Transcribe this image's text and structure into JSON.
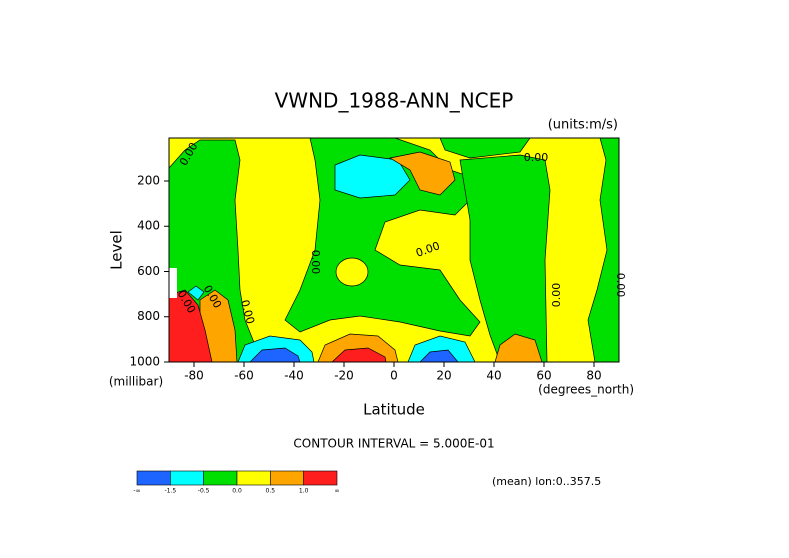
{
  "chart_data": {
    "type": "contour",
    "title": "VWND_1988-ANN_NCEP",
    "units": "(units:m/s)",
    "y_label": "Level",
    "y_units": "(millibar)",
    "x_label": "Latitude",
    "x_units": "(degrees_north)",
    "xlim": [
      -90,
      90
    ],
    "xticks": [
      -80,
      -60,
      -40,
      -20,
      0,
      20,
      40,
      60,
      80
    ],
    "ylim": [
      1000,
      10
    ],
    "yticks": [
      200,
      400,
      600,
      800,
      1000
    ],
    "contour_labels": [
      "0.00",
      "0.00",
      "0.00",
      "0.00",
      "0.00",
      "0.00",
      "0.00",
      "0.00",
      "0.00"
    ],
    "contour_interval_text": "CONTOUR INTERVAL = 5.000E-01",
    "mean_text": "(mean) lon:0..357.5",
    "colorbar": {
      "colors": [
        "#1e64ff",
        "#00ffff",
        "#00e000",
        "#ffff00",
        "#ffa500",
        "#ff1e1e"
      ],
      "labels": [
        "-∞",
        "-1.5",
        "-0.5",
        "0.0",
        "0.5",
        "1.0",
        "∞"
      ]
    }
  }
}
